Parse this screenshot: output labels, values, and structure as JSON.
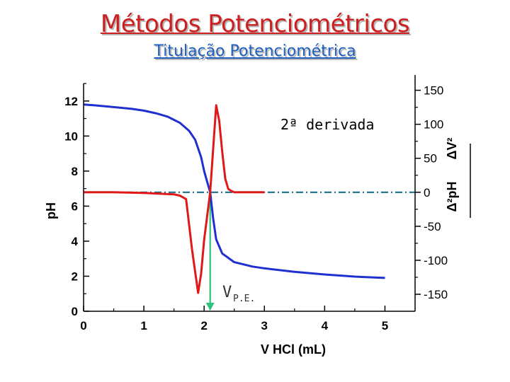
{
  "page": {
    "title": "Métodos Potenciométricos",
    "subtitle": "Titulação Potenciométrica"
  },
  "chart_data": {
    "type": "line",
    "xlabel": "V HCl (mL)",
    "ylabel": "pH",
    "y2label_num": "Δ²pH",
    "y2label_den": "ΔV²",
    "annotation": "2ª derivada",
    "marker_label": "V",
    "marker_sub": "P.E.",
    "x_ticks": [
      "0",
      "1",
      "2",
      "3",
      "4",
      "5"
    ],
    "y_ticks": [
      "0",
      "2",
      "4",
      "6",
      "8",
      "10",
      "12"
    ],
    "y2_ticks": [
      "-150",
      "-100",
      "-50",
      "0",
      "50",
      "100",
      "150"
    ],
    "xlim": [
      0,
      5.5
    ],
    "ylim": [
      0,
      13
    ],
    "y2lim": [
      -175,
      160
    ],
    "equivalence_volume": 2.1,
    "reference_line_y2": 0,
    "colors": {
      "ph": "#1f2fd0",
      "second_derivative": "#e01818",
      "reference": "#1a6e8e",
      "marker": "#2ec27e"
    },
    "series": [
      {
        "name": "pH",
        "x": [
          0,
          0.2,
          0.5,
          0.8,
          1.0,
          1.2,
          1.4,
          1.6,
          1.75,
          1.85,
          1.95,
          2.0,
          2.05,
          2.1,
          2.15,
          2.2,
          2.3,
          2.5,
          2.8,
          3.0,
          3.5,
          4.0,
          4.5,
          5.0
        ],
        "y": [
          11.8,
          11.75,
          11.65,
          11.55,
          11.45,
          11.3,
          11.1,
          10.75,
          10.3,
          9.8,
          8.8,
          8.0,
          7.4,
          6.8,
          5.3,
          4.1,
          3.3,
          2.8,
          2.55,
          2.45,
          2.25,
          2.1,
          1.98,
          1.9
        ]
      },
      {
        "name": "2ª derivada",
        "x": [
          0,
          0.5,
          1.0,
          1.5,
          1.6,
          1.7,
          1.8,
          1.9,
          1.95,
          2.0,
          2.1,
          2.2,
          2.25,
          2.3,
          2.35,
          2.4,
          2.45,
          2.5,
          3.0
        ],
        "y": [
          0,
          0,
          -1,
          -3,
          -5,
          -10,
          -85,
          -148,
          -120,
          -70,
          0,
          128,
          105,
          60,
          20,
          5,
          2,
          0,
          0
        ]
      }
    ]
  }
}
